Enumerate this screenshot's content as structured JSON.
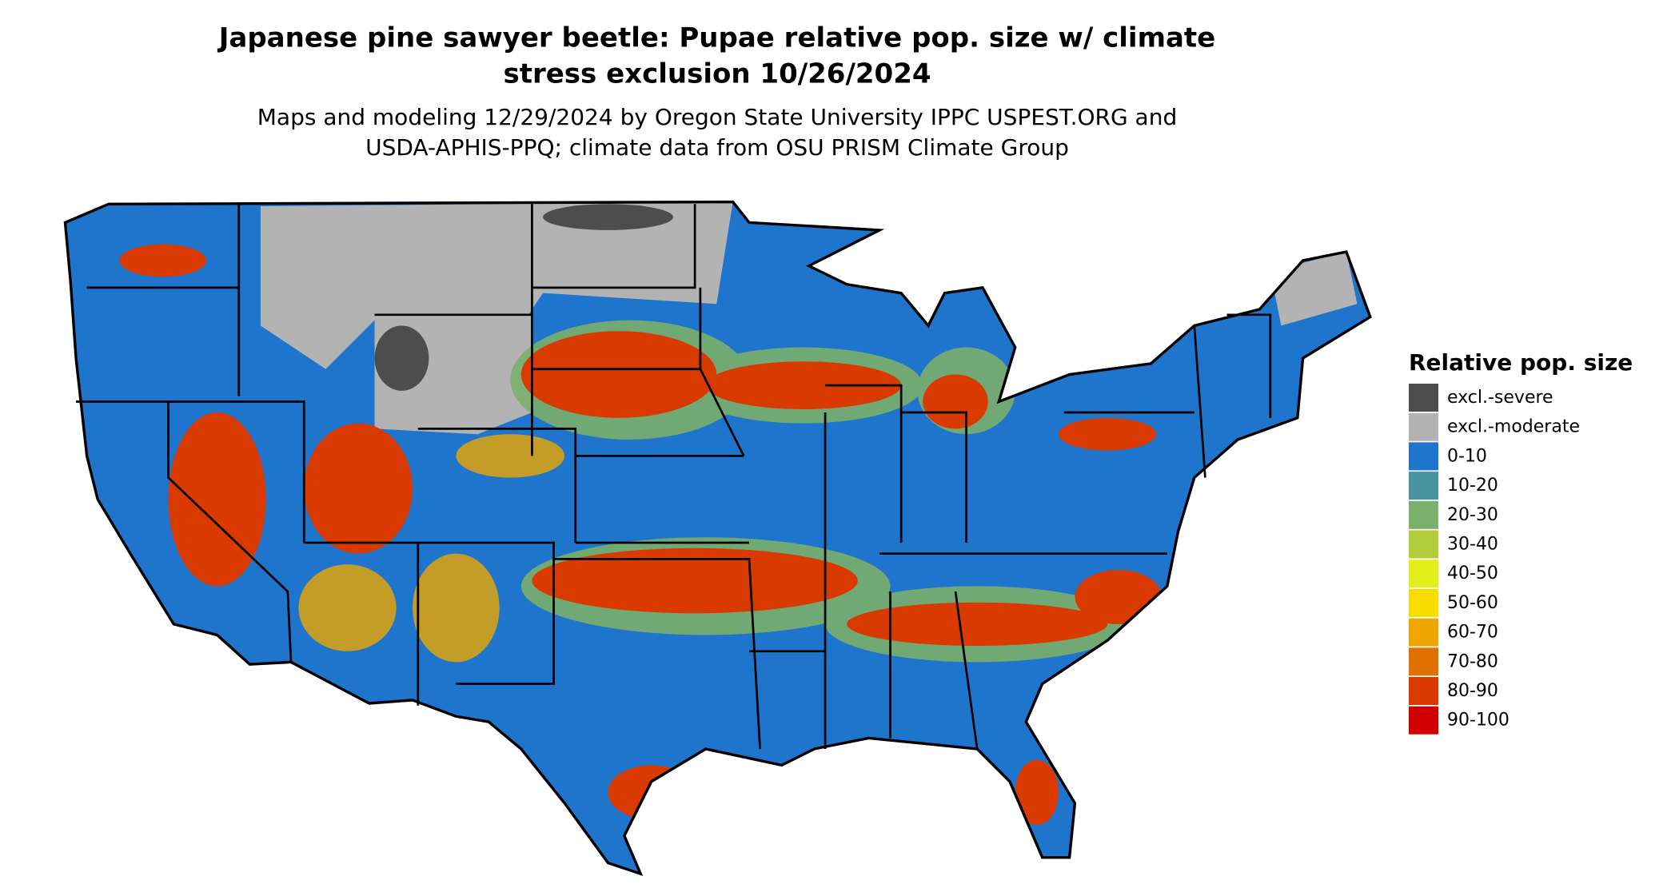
{
  "title": [
    "Japanese pine sawyer beetle: Pupae relative pop. size w/ climate",
    "stress exclusion 10/26/2024"
  ],
  "subtitle": [
    "Maps and modeling 12/29/2024 by Oregon State University IPPC USPEST.ORG and",
    "USDA-APHIS-PPQ; climate data from OSU PRISM Climate Group"
  ],
  "legend": {
    "title": "Relative pop. size",
    "items": [
      {
        "label": "excl.-severe",
        "color": "#4d4d4d"
      },
      {
        "label": "excl.-moderate",
        "color": "#b3b3b3"
      },
      {
        "label": "0-10",
        "color": "#1f74cc"
      },
      {
        "label": "10-20",
        "color": "#4a93a0"
      },
      {
        "label": "20-30",
        "color": "#7aaf6c"
      },
      {
        "label": "30-40",
        "color": "#b2cc3c"
      },
      {
        "label": "40-50",
        "color": "#e3ef1b"
      },
      {
        "label": "50-60",
        "color": "#f7de00"
      },
      {
        "label": "60-70",
        "color": "#eda700"
      },
      {
        "label": "70-80",
        "color": "#e07000"
      },
      {
        "label": "80-90",
        "color": "#d93a00"
      },
      {
        "label": "90-100",
        "color": "#d00000"
      }
    ]
  }
}
